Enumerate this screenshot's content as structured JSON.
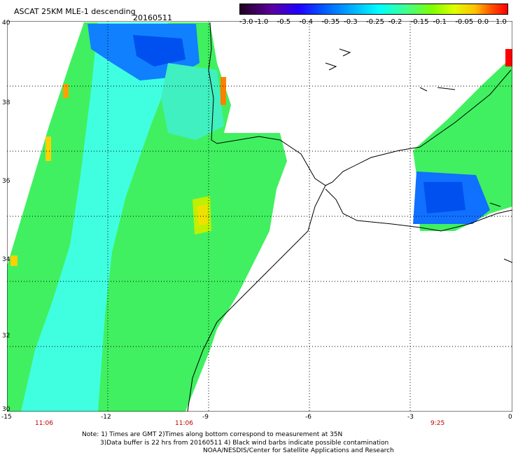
{
  "header": {
    "title": "ASCAT 25KM MLE-1 descending",
    "date": "20160511"
  },
  "colorbar": {
    "labels": [
      "-3.0",
      "-1.0",
      "-0.5",
      "-0.4",
      "-0.35",
      "-0.3",
      "-0.25",
      "-0.2",
      "-0.15",
      "-0.1",
      "-0.05",
      "0.0",
      "1.0"
    ],
    "colors": [
      "#200020",
      "#5a00a0",
      "#2000ff",
      "#0060ff",
      "#00b0ff",
      "#00ffff",
      "#40ff90",
      "#80ff00",
      "#e0ff00",
      "#ffc000",
      "#ff5000",
      "#ff0000"
    ]
  },
  "axes": {
    "lat_labels": [
      "40",
      "38",
      "36",
      "34",
      "32",
      "30"
    ],
    "lon_labels": [
      "-15",
      "-12",
      "-9",
      "-6",
      "-3",
      "0"
    ],
    "time_labels": [
      "11:06",
      "11:06",
      "9:25"
    ]
  },
  "notes": {
    "line1": "Note: 1) Times are GMT 2)Times along bottom correspond to measurement at 35N",
    "line2": "3)Data buffer is 22 hrs from 20160511 4) Black wind barbs indicate possible contamination",
    "line3": "NOAA/NESDIS/Center for Satellite Applications and Research"
  }
}
